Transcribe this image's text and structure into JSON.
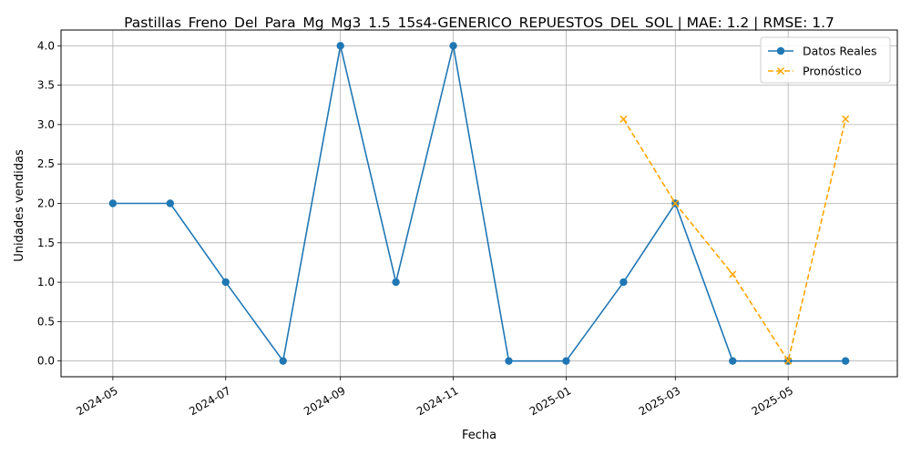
{
  "chart_data": {
    "type": "line",
    "title": "Pastillas_Freno_Del_Para_Mg_Mg3_1.5_15s4-GENERICO_REPUESTOS_DEL_SOL | MAE: 1.2 | RMSE: 1.7",
    "xlabel": "Fecha",
    "ylabel": "Unidades vendidas",
    "ylim": [
      -0.2,
      4.2
    ],
    "xlim": [
      "2024-04-03",
      "2025-06-29"
    ],
    "grid": true,
    "legend_position": "top-right",
    "x_ticks": [
      "2024-05",
      "2024-07",
      "2024-09",
      "2024-11",
      "2025-01",
      "2025-03",
      "2025-05"
    ],
    "y_ticks": [
      "0.0",
      "0.5",
      "1.0",
      "1.5",
      "2.0",
      "2.5",
      "3.0",
      "3.5",
      "4.0"
    ],
    "series": [
      {
        "name": "Datos Reales",
        "color": "#1f77b4",
        "style": "solid",
        "marker": "circle",
        "x": [
          "2024-05-01",
          "2024-06-01",
          "2024-07-01",
          "2024-08-01",
          "2024-09-01",
          "2024-10-01",
          "2024-11-01",
          "2024-12-01",
          "2025-01-01",
          "2025-02-01",
          "2025-03-01",
          "2025-04-01",
          "2025-05-01",
          "2025-06-01"
        ],
        "values": [
          2,
          2,
          1,
          0,
          4,
          1,
          4,
          0,
          0,
          1,
          2,
          0,
          0,
          0
        ]
      },
      {
        "name": "Pronóstico",
        "color": "#ffa500",
        "style": "dashed",
        "marker": "x",
        "x": [
          "2025-02-01",
          "2025-03-01",
          "2025-04-01",
          "2025-05-01",
          "2025-06-01"
        ],
        "values": [
          3.07,
          2.0,
          1.1,
          0.0,
          3.07
        ]
      }
    ]
  }
}
